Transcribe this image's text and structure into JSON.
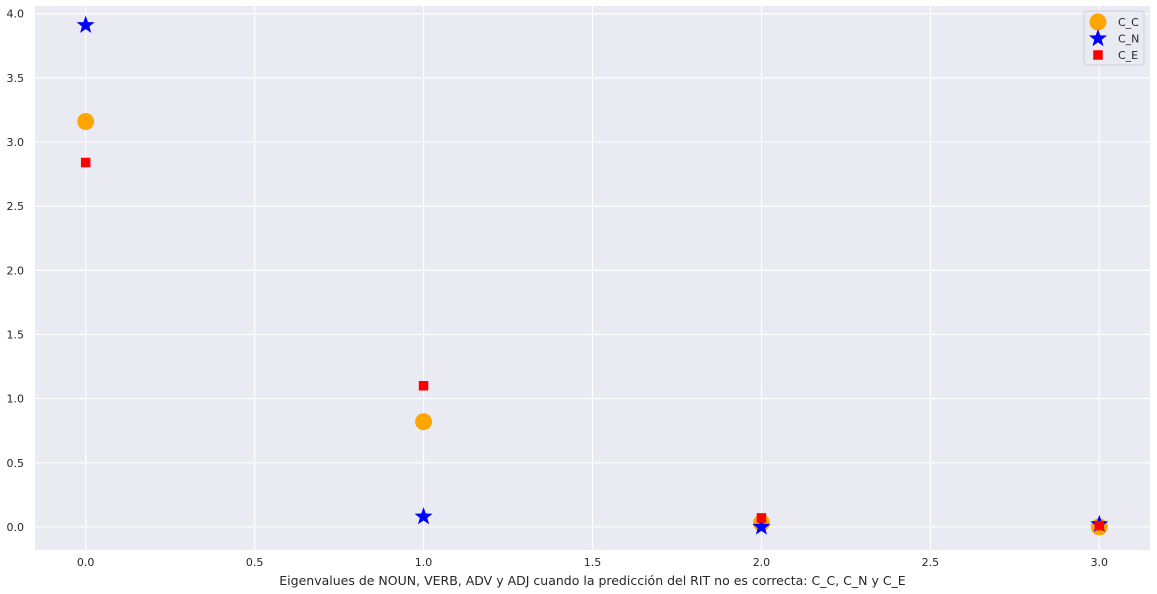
{
  "chart_data": {
    "type": "scatter",
    "xlabel": "Eigenvalues de NOUN, VERB, ADV y ADJ cuando la predicción del RIT no es correcta: C_C, C_N y C_E",
    "ylabel": "",
    "xlim": [
      -0.15,
      3.15
    ],
    "ylim": [
      -0.18,
      4.06
    ],
    "x_ticks": [
      "0.0",
      "0.5",
      "1.0",
      "1.5",
      "2.0",
      "2.5",
      "3.0"
    ],
    "y_ticks": [
      "0.0",
      "0.5",
      "1.0",
      "1.5",
      "2.0",
      "2.5",
      "3.0",
      "3.5",
      "4.0"
    ],
    "grid": true,
    "legend_position": "top-right",
    "series": [
      {
        "name": "C_C",
        "marker": "circle",
        "color": "#FFA500",
        "x": [
          0,
          1,
          2,
          3
        ],
        "y": [
          3.16,
          0.82,
          0.03,
          0.0
        ]
      },
      {
        "name": "C_N",
        "marker": "star",
        "color": "#0000FF",
        "x": [
          0,
          1,
          2,
          3
        ],
        "y": [
          3.91,
          0.08,
          0.0,
          0.02
        ]
      },
      {
        "name": "C_E",
        "marker": "square",
        "color": "#FF0000",
        "x": [
          0,
          1,
          2,
          3
        ],
        "y": [
          2.84,
          1.1,
          0.07,
          0.01
        ]
      }
    ]
  }
}
